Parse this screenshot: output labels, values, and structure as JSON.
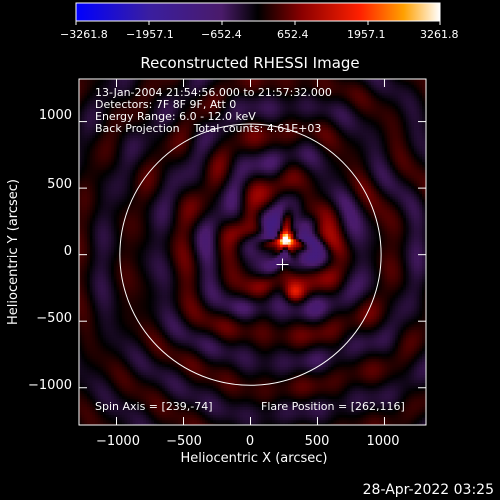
{
  "chart_data": {
    "type": "heatmap",
    "title": "Reconstructed RHESSI Image",
    "xlabel": "Heliocentric X (arcsec)",
    "ylabel": "Heliocentric Y (arcsec)",
    "xlim": [
      -1280,
      1310
    ],
    "ylim": [
      -1280,
      1320
    ],
    "x_ticks": [
      -1000,
      -500,
      0,
      500,
      1000
    ],
    "x_tick_labels": [
      "−1000",
      "−500",
      "0",
      "500",
      "1000"
    ],
    "y_ticks": [
      -1000,
      -500,
      0,
      500,
      1000
    ],
    "y_tick_labels": [
      "−1000",
      "−500",
      "0",
      "500",
      "1000"
    ],
    "colorbar": {
      "ticks": [
        -3261.8,
        -1957.1,
        -652.4,
        652.4,
        1957.1,
        3261.8
      ],
      "tick_labels": [
        "−3261.8",
        "−1957.1",
        "−652.4",
        "652.4",
        "1957.1",
        "3261.8"
      ],
      "range": [
        -3261.8,
        3261.8
      ]
    },
    "annotations": [
      "13-Jan-2004 21:54:56.000 to 21:57:32.000",
      "Detectors: 7F 8F 9F, Att 0",
      "Energy Range: 6.0 - 12.0 keV",
      "Back Projection    Total counts: 4.61E+03"
    ],
    "spin_axis_label": "Spin Axis = [239,-74]",
    "flare_position_label": "Flare Position = [262,116]",
    "spin_axis": [
      239,
      -74
    ],
    "flare_position": [
      262,
      116
    ],
    "solar_limb_radius": 975,
    "peak_value": 3261.8
  },
  "footer": {
    "timestamp": "28-Apr-2022 03:25"
  }
}
